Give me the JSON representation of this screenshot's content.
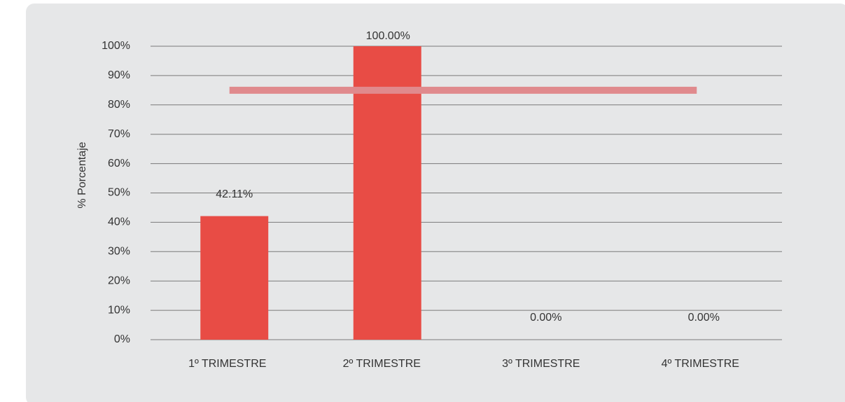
{
  "chart_data": {
    "type": "bar",
    "y_label": "% Porcentaje",
    "categories": [
      "1º TRIMESTRE",
      "2º TRIMESTRE",
      "3º TRIMESTRE",
      "4º TRIMESTRE"
    ],
    "values": [
      42.11,
      100,
      0,
      0
    ],
    "value_labels": [
      "42.11%",
      "100.00%",
      "0.00%",
      "0.00%"
    ],
    "color": "#e84c45",
    "reference_line": {
      "value": 85,
      "color": "#e08a8d"
    },
    "ylim": [
      0,
      100
    ],
    "yticks": [
      {
        "value": 0,
        "label": "0%"
      },
      {
        "value": 10,
        "label": "10%"
      },
      {
        "value": 20,
        "label": "20%"
      },
      {
        "value": 30,
        "label": "30%"
      },
      {
        "value": 40,
        "label": "40%"
      },
      {
        "value": 50,
        "label": "50%"
      },
      {
        "value": 60,
        "label": "60%"
      },
      {
        "value": 70,
        "label": "70%"
      },
      {
        "value": 80,
        "label": "80%"
      },
      {
        "value": 90,
        "label": "90%"
      },
      {
        "value": 100,
        "label": "100%"
      }
    ],
    "grid": true
  }
}
